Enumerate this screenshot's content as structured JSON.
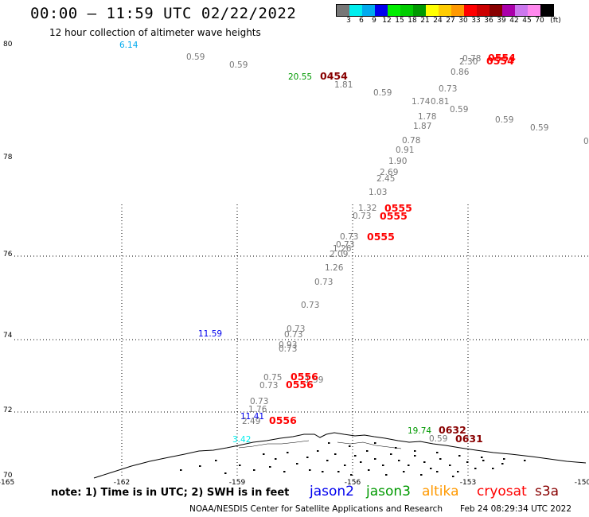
{
  "header": {
    "title": "00:00 — 11:59 UTC 02/22/2022",
    "subtitle": "12 hour collection of altimeter wave heights"
  },
  "colorbar": {
    "colors": [
      "#777777",
      "#00eeee",
      "#00aaee",
      "#0000ee",
      "#00ee00",
      "#00cc00",
      "#009900",
      "#ffff00",
      "#ffcc00",
      "#ff9900",
      "#ff0000",
      "#cc0000",
      "#880000",
      "#aa00aa",
      "#cc77ee",
      "#ff88ee",
      "#000000"
    ],
    "labels": [
      "3",
      "6",
      "9",
      "12",
      "15",
      "18",
      "21",
      "24",
      "27",
      "30",
      "33",
      "36",
      "39",
      "42",
      "45",
      "70",
      "(ft)"
    ]
  },
  "axes": {
    "y_labels": [
      "80",
      "78",
      "76",
      "74",
      "72",
      "70"
    ],
    "x_labels": [
      "-165",
      "-162",
      "-159",
      "-156",
      "-153",
      "-150"
    ]
  },
  "observations": [
    {
      "text": "6.14",
      "color": "#00aaee"
    },
    {
      "text": "0.59",
      "color": "#777777"
    },
    {
      "text": "0.59",
      "color": "#777777"
    },
    {
      "text": "20.55",
      "color": "#009900"
    },
    {
      "text": "1.81",
      "color": "#777777"
    },
    {
      "text": "0.59",
      "color": "#777777"
    },
    {
      "text": "0.73",
      "color": "#777777"
    },
    {
      "text": "1.74",
      "color": "#777777"
    },
    {
      "text": "0.81",
      "color": "#777777"
    },
    {
      "text": "0.59",
      "color": "#777777"
    },
    {
      "text": "1.78",
      "color": "#777777"
    },
    {
      "text": "1.87",
      "color": "#777777"
    },
    {
      "text": "0.59",
      "color": "#777777"
    },
    {
      "text": "0.59",
      "color": "#777777"
    },
    {
      "text": "0.78",
      "color": "#777777"
    },
    {
      "text": "0.91",
      "color": "#777777"
    },
    {
      "text": "1.90",
      "color": "#777777"
    },
    {
      "text": "2.69",
      "color": "#777777"
    },
    {
      "text": "2.45",
      "color": "#777777"
    },
    {
      "text": "1.03",
      "color": "#777777"
    },
    {
      "text": "1.32",
      "color": "#777777"
    },
    {
      "text": "0.73",
      "color": "#777777"
    },
    {
      "text": "0.73",
      "color": "#777777"
    },
    {
      "text": "0.73",
      "color": "#777777"
    },
    {
      "text": "1.26",
      "color": "#777777"
    },
    {
      "text": "2.09",
      "color": "#777777"
    },
    {
      "text": "1.26",
      "color": "#777777"
    },
    {
      "text": "0.73",
      "color": "#777777"
    },
    {
      "text": "0.73",
      "color": "#777777"
    },
    {
      "text": "11.59",
      "color": "#0000ee"
    },
    {
      "text": "0.73",
      "color": "#777777"
    },
    {
      "text": "0.73",
      "color": "#777777"
    },
    {
      "text": "0.93",
      "color": "#777777"
    },
    {
      "text": "0.73",
      "color": "#777777"
    },
    {
      "text": "0.75",
      "color": "#777777"
    },
    {
      "text": "0.73",
      "color": "#777777"
    },
    {
      "text": "1.59",
      "color": "#777777"
    },
    {
      "text": "0.73",
      "color": "#777777"
    },
    {
      "text": "1.76",
      "color": "#777777"
    },
    {
      "text": "11.41",
      "color": "#0000ee"
    },
    {
      "text": "2.49",
      "color": "#777777"
    },
    {
      "text": "3.42",
      "color": "#00eeee"
    },
    {
      "text": "19.74",
      "color": "#009900"
    },
    {
      "text": "0.59",
      "color": "#777777"
    },
    {
      "text": "0.86",
      "color": "#777777"
    },
    {
      "text": "0.78",
      "color": "#777777"
    },
    {
      "text": "2.30",
      "color": "#777777"
    },
    {
      "text": "0",
      "color": "#777777"
    }
  ],
  "passes": [
    {
      "text": "0454",
      "color": "#880000"
    },
    {
      "text": "0554",
      "color": "#ff0000"
    },
    {
      "text": "0554",
      "color": "#ff0000"
    },
    {
      "text": "0555",
      "color": "#ff0000"
    },
    {
      "text": "0555",
      "color": "#ff0000"
    },
    {
      "text": "0555",
      "color": "#ff0000"
    },
    {
      "text": "0556",
      "color": "#ff0000"
    },
    {
      "text": "0556",
      "color": "#ff0000"
    },
    {
      "text": "0556",
      "color": "#ff0000"
    },
    {
      "text": "0632",
      "color": "#880000"
    },
    {
      "text": "0631",
      "color": "#880000"
    }
  ],
  "footer": {
    "note": "note: 1) Time is in UTC; 2) SWH is in feet",
    "legend": [
      {
        "name": "jason2",
        "color": "#0000ee"
      },
      {
        "name": "jason3",
        "color": "#009900"
      },
      {
        "name": "altika",
        "color": "#ff9900"
      },
      {
        "name": "cryosat",
        "color": "#ff0000"
      },
      {
        "name": "s3a",
        "color": "#880000"
      }
    ],
    "credit": "NOAA/NESDIS Center for Satellite Applications and Research",
    "timestamp": "Feb 24 08:29:34 UTC 2022"
  }
}
